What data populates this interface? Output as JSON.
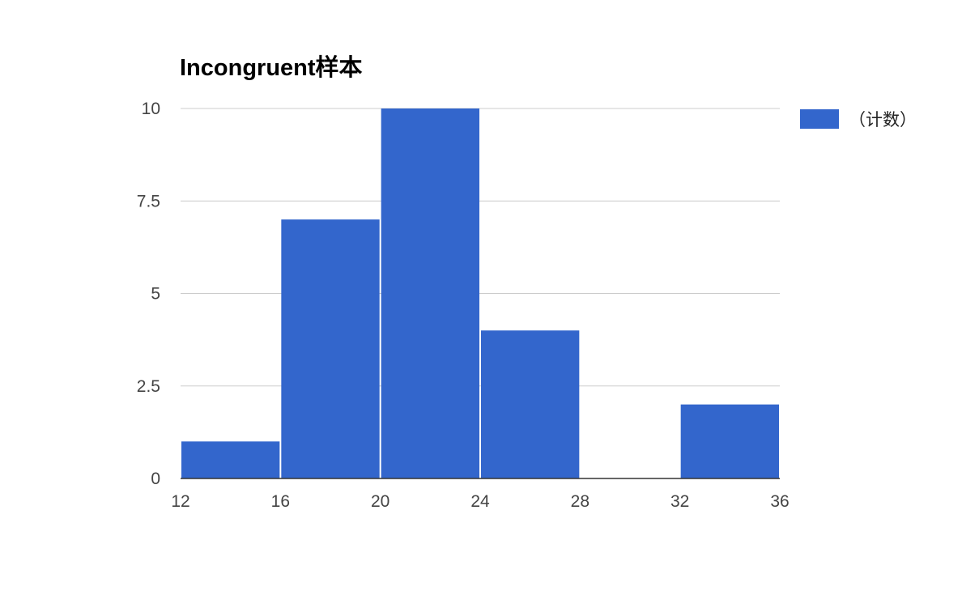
{
  "chart_data": {
    "type": "bar",
    "title": "Incongruent样本",
    "xlabel": "",
    "ylabel": "",
    "bins": [
      {
        "start": 12,
        "end": 16,
        "value": 1
      },
      {
        "start": 16,
        "end": 20,
        "value": 7
      },
      {
        "start": 20,
        "end": 24,
        "value": 10
      },
      {
        "start": 24,
        "end": 28,
        "value": 4
      },
      {
        "start": 28,
        "end": 32,
        "value": 0
      },
      {
        "start": 32,
        "end": 36,
        "value": 2
      }
    ],
    "series": [
      {
        "name": "（计数）",
        "values": [
          1,
          7,
          10,
          4,
          0,
          2
        ],
        "color": "#3366cc"
      }
    ],
    "x_ticks": [
      "12",
      "16",
      "20",
      "24",
      "28",
      "32",
      "36"
    ],
    "y_ticks": [
      "0",
      "2.5",
      "5",
      "7.5",
      "10"
    ],
    "xlim": [
      12,
      36
    ],
    "ylim": [
      0,
      10
    ],
    "grid": true,
    "legend_position": "right",
    "colors": {
      "bar": "#3366cc",
      "grid": "#cccccc",
      "axis": "#333333",
      "tick_text": "#444444"
    }
  }
}
